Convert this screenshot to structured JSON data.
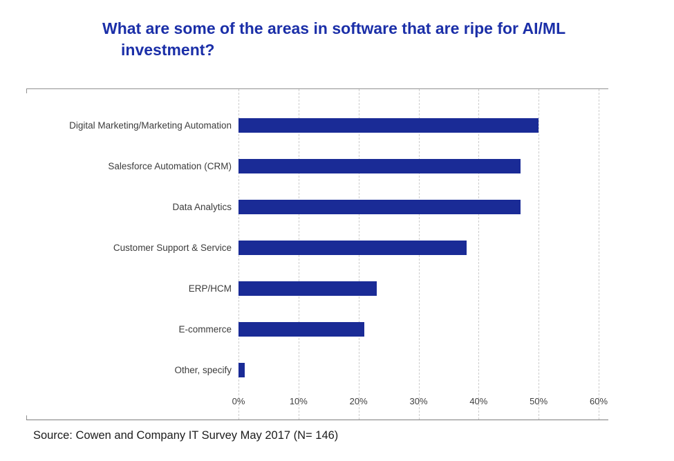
{
  "page": {
    "source_note": "Source: Cowen and Company IT Survey May 2017 (N= 146)"
  },
  "chart_data": {
    "type": "bar",
    "orientation": "horizontal",
    "title": "What are some of the areas in software that are ripe for AI/ML investment?",
    "categories": [
      "Digital Marketing/Marketing Automation",
      "Salesforce Automation (CRM)",
      "Data Analytics",
      "Customer Support & Service",
      "ERP/HCM",
      "E-commerce",
      "Other, specify"
    ],
    "values": [
      50,
      47,
      47,
      38,
      23,
      21,
      1
    ],
    "value_unit": "%",
    "xlabel": "",
    "ylabel": "",
    "xlim": [
      0,
      60
    ],
    "x_tick_labels": [
      "0%",
      "10%",
      "20%",
      "30%",
      "40%",
      "50%",
      "60%"
    ],
    "grid": "vertical dashed gridlines at each 10% tick",
    "legend": "none",
    "bar_color": "#1a2b96",
    "title_color": "#1b2fa8"
  }
}
